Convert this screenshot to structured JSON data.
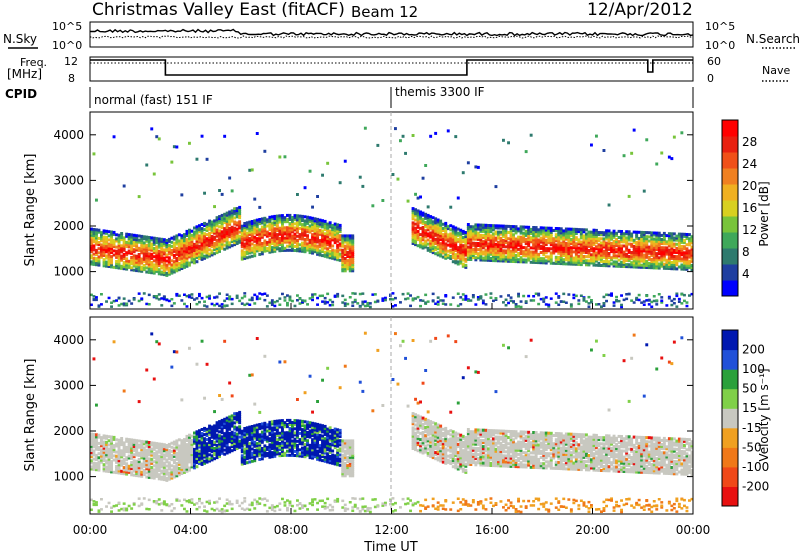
{
  "header": {
    "title": "Christmas Valley East (fitACF)",
    "beam": "Beam 12",
    "date": "12/Apr/2012"
  },
  "labels": {
    "nsky": "N.Sky",
    "nsearch": "N.Search",
    "freq_line1": "Freq.",
    "freq_line2": "[MHz]",
    "nave": "Nave",
    "cpid": "CPID",
    "noise_ticks_left": [
      "10^5",
      "10^0"
    ],
    "noise_ticks_right": [
      "10^5",
      "10^0"
    ],
    "freq_ticks_left": [
      "12",
      "8"
    ],
    "freq_ticks_right": [
      "60",
      "0"
    ]
  },
  "cpid_segments": [
    {
      "label": "normal (fast) 151 IF",
      "start": 0,
      "end": 12
    },
    {
      "label": "themis 3300 IF",
      "start": 12,
      "end": 24
    }
  ],
  "colorbars": {
    "power": {
      "title": "Power [dB]",
      "ticks": [
        "4",
        "8",
        "12",
        "16",
        "20",
        "24",
        "28"
      ],
      "colors": [
        "#0000ff",
        "#1f3fa0",
        "#2e7a6e",
        "#3fa85a",
        "#78c43a",
        "#d8d020",
        "#f0b020",
        "#f08020",
        "#f05018",
        "#e82010",
        "#ff0000"
      ]
    },
    "velocity": {
      "title": "Velocity [m s⁻¹]",
      "ticks": [
        "200",
        "100",
        "50",
        "15",
        "-15",
        "-50",
        "-100",
        "-200"
      ],
      "colors": [
        "#0018b0",
        "#2050d8",
        "#2aa03a",
        "#80d048",
        "#c8c8c0",
        "#f0a020",
        "#f07818",
        "#f04818",
        "#e81010"
      ]
    }
  },
  "chart_data": [
    {
      "type": "line",
      "name": "noise",
      "series_names": [
        "N.Sky",
        "N.Search"
      ],
      "ylim_labels": [
        "10^0",
        "10^5"
      ]
    },
    {
      "type": "line",
      "name": "frequency",
      "left_axis": "Freq. [MHz]",
      "right_axis": "Nave",
      "ylim_left": [
        8,
        12
      ],
      "ylim_right": [
        0,
        60
      ],
      "freq_steps": [
        {
          "t": 0.0,
          "freq": 11.5
        },
        {
          "t": 3.0,
          "freq": 9.0
        },
        {
          "t": 15.0,
          "freq": 11.5
        },
        {
          "t": 22.2,
          "freq": 9.5
        },
        {
          "t": 22.4,
          "freq": 11.5
        }
      ],
      "nave_level": 11.0
    },
    {
      "type": "heatmap",
      "name": "power",
      "xlabel": "",
      "ylabel": "Slant Range [km]",
      "xlim": [
        0,
        24
      ],
      "ylim": [
        180,
        4500
      ],
      "yticks": [
        1000,
        2000,
        3000,
        4000
      ],
      "clim": [
        2,
        30
      ],
      "cbar_label": "Power [dB]"
    },
    {
      "type": "heatmap",
      "name": "velocity",
      "xlabel": "Time UT",
      "ylabel": "Slant Range [km]",
      "xlim": [
        0,
        24
      ],
      "ylim": [
        180,
        4500
      ],
      "yticks": [
        1000,
        2000,
        3000,
        4000
      ],
      "xticks": [
        "00:00",
        "04:00",
        "08:00",
        "12:00",
        "16:00",
        "20:00",
        "00:00"
      ],
      "cbar_label": "Velocity [m s⁻¹]"
    }
  ]
}
